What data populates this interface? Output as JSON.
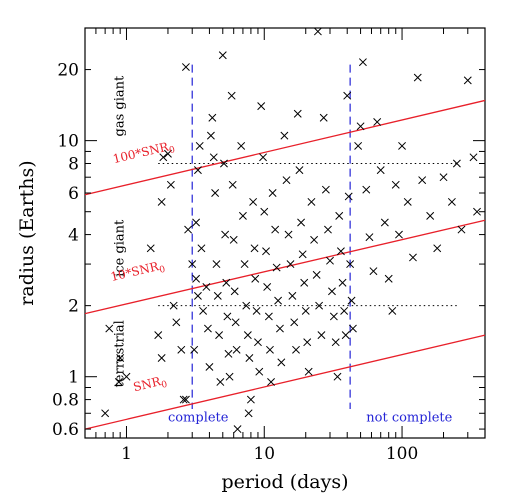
{
  "chart_data": {
    "type": "scatter",
    "title": "",
    "xlabel": "period (days)",
    "ylabel": "radius (Earths)",
    "xscale": "log",
    "yscale": "log",
    "xlim": [
      0.5,
      400
    ],
    "ylim": [
      0.55,
      30
    ],
    "xticks": [
      1,
      10,
      100
    ],
    "xtick_labels": [
      "1",
      "10",
      "100"
    ],
    "yticks": [
      0.6,
      0.8,
      1,
      2,
      4,
      6,
      8,
      10,
      20
    ],
    "ytick_labels": [
      "0.6",
      "0.8",
      "1",
      "2",
      "4",
      "6",
      "8",
      "10",
      "20"
    ],
    "marker": "x",
    "marker_color": "#000000",
    "grid": false,
    "reference_lines": {
      "radius_dotted": [
        {
          "y": 2,
          "x_from": 1.7,
          "x_to": 250
        },
        {
          "y": 8,
          "x_from": 1.7,
          "x_to": 250
        }
      ],
      "completeness_dashed": [
        {
          "x": 3,
          "color": "#2424d6"
        },
        {
          "x": 42,
          "color": "#2424d6"
        }
      ],
      "snr_lines": [
        {
          "label": "SNR",
          "subscript": "0",
          "color": "#e8202a",
          "points": [
            [
              0.5,
              0.6
            ],
            [
              400,
              1.5
            ]
          ]
        },
        {
          "label": "10*SNR",
          "subscript": "0",
          "color": "#e8202a",
          "points": [
            [
              0.5,
              1.85
            ],
            [
              400,
              4.6
            ]
          ]
        },
        {
          "label": "100*SNR",
          "subscript": "0",
          "color": "#e8202a",
          "points": [
            [
              0.5,
              5.9
            ],
            [
              400,
              14.8
            ]
          ]
        }
      ]
    },
    "region_labels": [
      {
        "text": "gas giant",
        "x": 0.95,
        "y": 14
      },
      {
        "text": "ice giant",
        "x": 0.95,
        "y": 3.5
      },
      {
        "text": "terrestrial",
        "x": 0.95,
        "y": 1.25
      }
    ],
    "completeness_labels": [
      {
        "text": "complete",
        "x": 2.0,
        "y": 0.62
      },
      {
        "text": "not complete",
        "x": 55,
        "y": 0.62
      }
    ],
    "points": [
      [
        0.7,
        0.7
      ],
      [
        0.75,
        1.6
      ],
      [
        0.9,
        1.2
      ],
      [
        0.88,
        0.95
      ],
      [
        1.0,
        1.0
      ],
      [
        1.5,
        3.5
      ],
      [
        1.7,
        1.5
      ],
      [
        1.8,
        1.2
      ],
      [
        1.8,
        5.5
      ],
      [
        1.85,
        8.5
      ],
      [
        2.0,
        8.8
      ],
      [
        2.1,
        6.5
      ],
      [
        2.2,
        2.0
      ],
      [
        2.3,
        1.7
      ],
      [
        2.5,
        1.3
      ],
      [
        2.6,
        0.8
      ],
      [
        2.7,
        20.5
      ],
      [
        2.7,
        0.8
      ],
      [
        2.8,
        4.2
      ],
      [
        3.0,
        3.0
      ],
      [
        3.2,
        2.6
      ],
      [
        3.3,
        2.2
      ],
      [
        3.1,
        1.3
      ],
      [
        3.2,
        4.5
      ],
      [
        3.4,
        9.5
      ],
      [
        3.3,
        7.5
      ],
      [
        3.5,
        3.5
      ],
      [
        3.6,
        1.9
      ],
      [
        3.8,
        2.4
      ],
      [
        3.9,
        1.6
      ],
      [
        4.0,
        1.1
      ],
      [
        4.1,
        10.5
      ],
      [
        4.2,
        12.5
      ],
      [
        4.3,
        8.5
      ],
      [
        4.4,
        6.0
      ],
      [
        4.5,
        3.0
      ],
      [
        4.6,
        2.2
      ],
      [
        4.7,
        1.5
      ],
      [
        4.8,
        0.95
      ],
      [
        5.0,
        23.0
      ],
      [
        5.1,
        8.0
      ],
      [
        5.2,
        4.0
      ],
      [
        5.3,
        2.5
      ],
      [
        5.4,
        1.8
      ],
      [
        5.5,
        1.25
      ],
      [
        5.6,
        1.0
      ],
      [
        5.8,
        15.5
      ],
      [
        5.9,
        6.5
      ],
      [
        6.0,
        3.8
      ],
      [
        6.1,
        2.3
      ],
      [
        6.2,
        1.7
      ],
      [
        6.3,
        1.3
      ],
      [
        6.4,
        0.6
      ],
      [
        6.8,
        9.5
      ],
      [
        7.0,
        4.8
      ],
      [
        7.2,
        3.0
      ],
      [
        7.4,
        2.0
      ],
      [
        7.6,
        1.5
      ],
      [
        7.8,
        1.2
      ],
      [
        7.7,
        0.7
      ],
      [
        8.0,
        0.8
      ],
      [
        8.3,
        5.5
      ],
      [
        8.5,
        3.5
      ],
      [
        8.6,
        2.6
      ],
      [
        8.8,
        1.9
      ],
      [
        9.0,
        1.4
      ],
      [
        9.2,
        1.05
      ],
      [
        9.5,
        14.0
      ],
      [
        9.8,
        8.5
      ],
      [
        10.0,
        5.0
      ],
      [
        10.3,
        3.4
      ],
      [
        10.5,
        2.4
      ],
      [
        10.8,
        1.8
      ],
      [
        11.0,
        1.3
      ],
      [
        11.2,
        0.95
      ],
      [
        11.5,
        6.0
      ],
      [
        12.0,
        4.2
      ],
      [
        12.3,
        2.9
      ],
      [
        12.6,
        2.1
      ],
      [
        13.0,
        1.6
      ],
      [
        13.3,
        1.15
      ],
      [
        14.0,
        10.5
      ],
      [
        14.5,
        6.8
      ],
      [
        15.0,
        4.0
      ],
      [
        15.5,
        3.0
      ],
      [
        16.0,
        2.2
      ],
      [
        16.5,
        1.7
      ],
      [
        17.0,
        1.3
      ],
      [
        17.5,
        13.0
      ],
      [
        18.0,
        7.5
      ],
      [
        18.5,
        4.5
      ],
      [
        19.0,
        3.3
      ],
      [
        19.5,
        2.5
      ],
      [
        20.0,
        1.9
      ],
      [
        20.5,
        1.4
      ],
      [
        21.0,
        1.05
      ],
      [
        22.0,
        5.5
      ],
      [
        23.0,
        3.8
      ],
      [
        24.0,
        2.7
      ],
      [
        24.5,
        29.0
      ],
      [
        25.0,
        2.0
      ],
      [
        26.0,
        1.5
      ],
      [
        27.0,
        12.5
      ],
      [
        28.0,
        6.2
      ],
      [
        29.0,
        4.2
      ],
      [
        30.0,
        3.1
      ],
      [
        31.0,
        2.3
      ],
      [
        32.0,
        1.8
      ],
      [
        33.0,
        1.4
      ],
      [
        34.0,
        1.0
      ],
      [
        35.0,
        4.8
      ],
      [
        36.0,
        3.4
      ],
      [
        37.0,
        2.5
      ],
      [
        38.0,
        1.9
      ],
      [
        39.0,
        1.5
      ],
      [
        40.0,
        15.5
      ],
      [
        41.0,
        5.8
      ],
      [
        42.0,
        3.0
      ],
      [
        43.0,
        2.1
      ],
      [
        44.0,
        1.6
      ],
      [
        48.0,
        9.5
      ],
      [
        50.0,
        11.5
      ],
      [
        52.0,
        21.5
      ],
      [
        55.0,
        6.2
      ],
      [
        58.0,
        3.9
      ],
      [
        62.0,
        2.8
      ],
      [
        66.0,
        12.0
      ],
      [
        70.0,
        7.5
      ],
      [
        75.0,
        4.5
      ],
      [
        80.0,
        2.6
      ],
      [
        85.0,
        1.9
      ],
      [
        90.0,
        6.5
      ],
      [
        95.0,
        4.0
      ],
      [
        100.0,
        9.5
      ],
      [
        110.0,
        5.5
      ],
      [
        120.0,
        3.2
      ],
      [
        130.0,
        18.5
      ],
      [
        140.0,
        6.8
      ],
      [
        160.0,
        4.8
      ],
      [
        180.0,
        3.5
      ],
      [
        200.0,
        7.0
      ],
      [
        230.0,
        5.5
      ],
      [
        250.0,
        8.0
      ],
      [
        270.0,
        4.2
      ],
      [
        300.0,
        18.0
      ],
      [
        330.0,
        8.5
      ],
      [
        350.0,
        5.0
      ]
    ]
  }
}
